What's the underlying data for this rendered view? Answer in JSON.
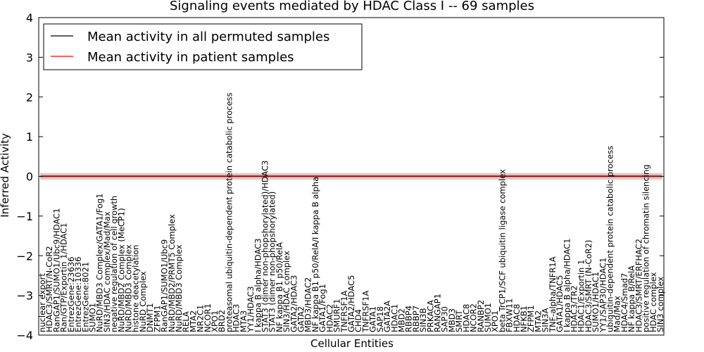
{
  "chart_data": {
    "type": "line",
    "title": "Signaling events mediated by HDAC Class I -- 69 samples",
    "xlabel": "Cellular Entities",
    "ylabel": "Inferred Activity",
    "ylim": [
      -4,
      4
    ],
    "yticks": [
      -4,
      -3,
      -2,
      -1,
      0,
      1,
      2,
      3,
      4
    ],
    "grid": false,
    "legend_position": "top-left",
    "series": [
      {
        "name": "Mean activity in all permuted samples",
        "color": "#000000"
      },
      {
        "name": "Mean activity in patient samples",
        "color": "#ff0000"
      }
    ],
    "categories": [
      "nuclear export",
      "HDAC3/SMRT/N-CoR2",
      "RanGAP1/SUMO1/Ubc9/HDAC1",
      "Ran/GTP/Exportin 1/HDAC1",
      "EntrezGene:23636",
      "EntrezGene:10336",
      "EntrezGene:8021",
      "SUMO1",
      "NuRD/MBD3 Complex/GATA1/Fog1",
      "SIN3/HDAC complex/Mad/Max",
      "negative regulation of cell growth",
      "NuRD/MBD2 Complex (MeCP1)",
      "NuRD/MBD3 Complex",
      "histone deacetylation",
      "NuRD Complex",
      "DNMT1",
      "ZFPM1",
      "RanGAP1/SUMO1/Ubc9",
      "NuRD/MBD2/PRMT5 Complex",
      "NuRD/MBD3 Complex",
      "RELA",
      "MTA2",
      "NR2C1",
      "NCOR1",
      "XPO1",
      "BRD2",
      "proteasomal ubiquitin-dependent protein catabolic process",
      "HDAC3",
      "MTA3",
      "YY1/HDAC3",
      "I kappa B alpha/HDAC3",
      "STAT3 (dimer non-phopshorylated)/HDAC3",
      "STAT3 (dimer non-phopshorylated)",
      "NF kappa B1 p50/RelA",
      "SIN3/HDAC complex",
      "GATA2/HDAC3",
      "GATA2",
      "MBD3/HDAC2",
      "NF kappa B1 p50/RelA/I kappa B alpha",
      "GATA1/Fog1",
      "HDAC2",
      "SMURF1",
      "TNFRSF1A",
      "GATA2/HDAC5",
      "CHD4",
      "TNFRSF1A",
      "GATA1",
      "SAP18",
      "GATA2A",
      "HDAC1",
      "MBD2",
      "RBBP4",
      "RBBP7",
      "SIN3B",
      "PRKACA",
      "RANGAP1",
      "SAP30",
      "MBD3",
      "SMRT",
      "HDAC8",
      "NCOR2",
      "RANBP2",
      "SUMO1",
      "XPO1",
      "beta TrCP1/SCF ubiquitin ligase complex",
      "FBXW11",
      "HDAC8",
      "NFKB1",
      "ZFPM1",
      "MTA2",
      "SIN3A",
      "TNF-alpha/TNFR1A",
      "GATA1/HDAC5",
      "I kappa B alpha/HDAC1",
      "HDAC3/TR2",
      "HDAC1/Exportin 1",
      "HDAC3/SMRT (N-CoR2)",
      "SUMO1/HDAC1",
      "YY1/SAP30/HDAC1",
      "ubiquitin-dependent protein catabolic process",
      "Mad/Max",
      "HDAC4/Smad7",
      "NF kappa B/RelA",
      "HDAC3/SMRT/ERFHAC2",
      "positive regulation of chromatin silencing",
      "HDAC complex",
      "SIN3 complex"
    ]
  }
}
